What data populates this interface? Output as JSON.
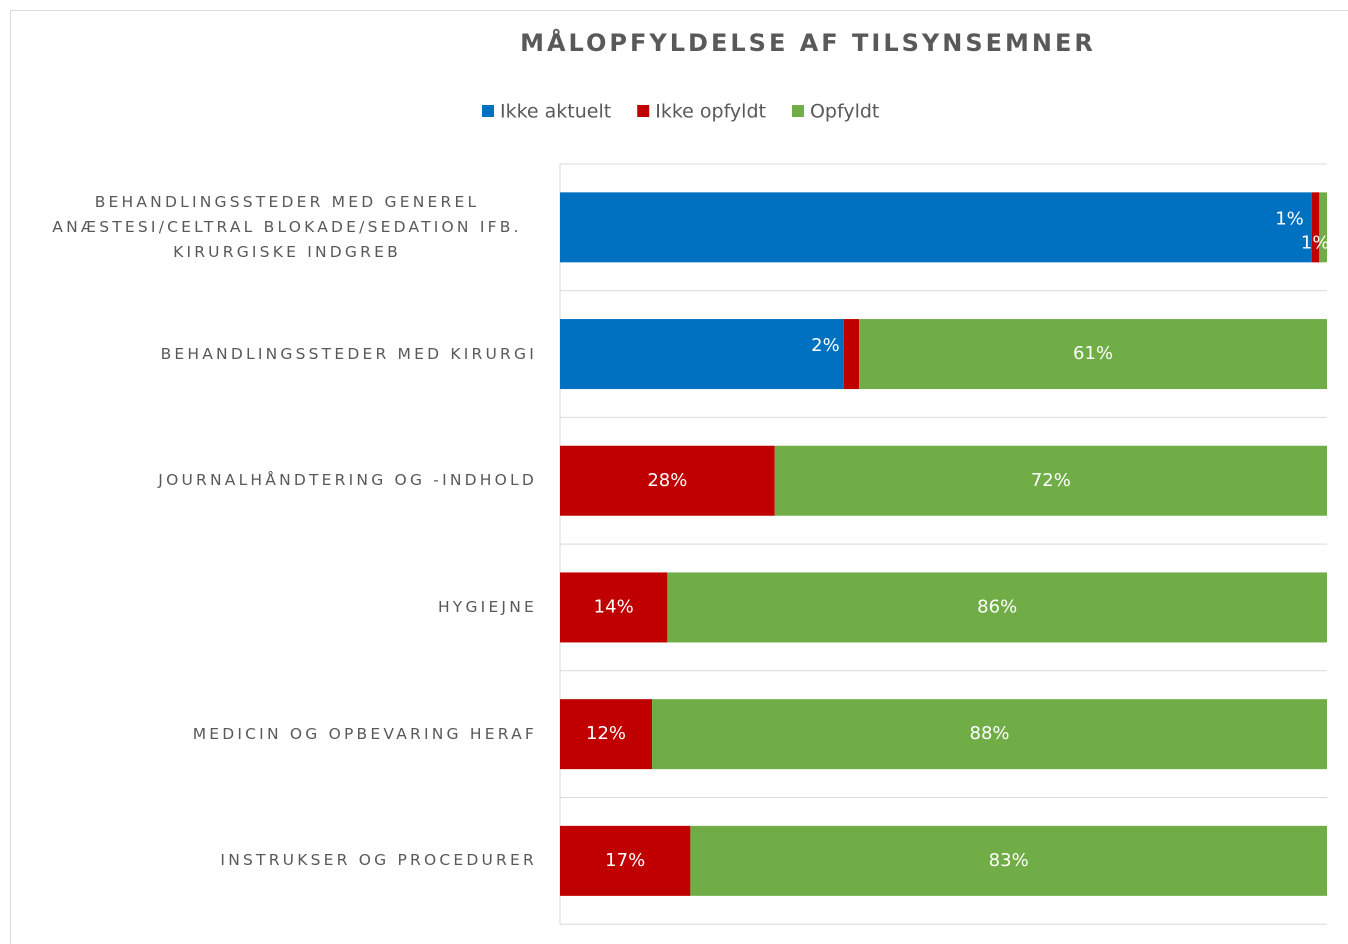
{
  "chart_data": {
    "type": "stacked-bar-horizontal",
    "title": "MÅLOPFYLDELSE AF TILSYNSEMNER",
    "categories": [
      "BEHANDLINGSSTEDER MED GENEREL ANÆSTESI/CELTRAL BLOKADE/SEDATION IFB. KIRURGISKE INDGREB",
      "BEHANDLINGSSTEDER MED KIRURGI",
      "JOURNALHÅNDTERING OG -INDHOLD",
      "HYGIEJNE",
      "MEDICIN OG OPBEVARING HERAF",
      "INSTRUKSER OG PROCEDURER"
    ],
    "series": [
      {
        "name": "Ikke aktuelt",
        "color": "#0070c0",
        "values": [
          98,
          37,
          0,
          0,
          0,
          0
        ]
      },
      {
        "name": "Ikke opfyldt",
        "color": "#c00000",
        "values": [
          1,
          2,
          28,
          14,
          12,
          17
        ],
        "value_labels": [
          "1%",
          "2%",
          "28%",
          "14%",
          "12%",
          "17%"
        ]
      },
      {
        "name": "Opfyldt",
        "color": "#70ad47",
        "values": [
          1,
          61,
          72,
          86,
          88,
          83
        ],
        "value_labels": [
          "1%",
          "61%",
          "72%",
          "86%",
          "88%",
          "83%"
        ]
      }
    ],
    "xlim": [
      0,
      100
    ],
    "legend": "top"
  }
}
